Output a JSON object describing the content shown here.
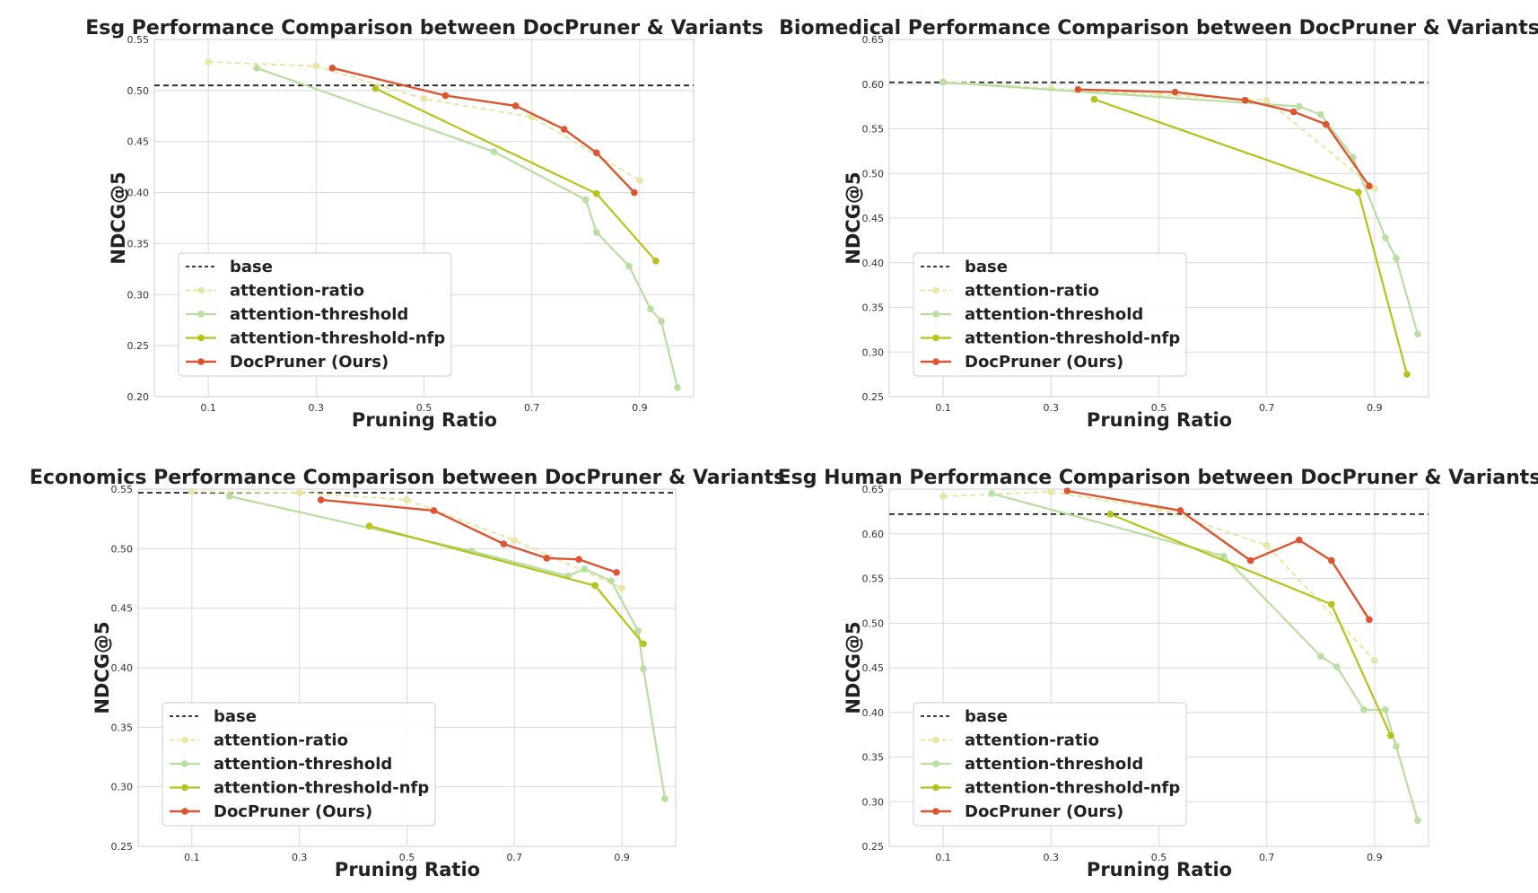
{
  "colors": {
    "base": "#222222",
    "attention_ratio": "#e7e6a6",
    "attention_threshold": "#b9dea2",
    "attention_threshold_nfp": "#b6c31a",
    "docpruner": "#dd5530",
    "grid": "#d9d9d9"
  },
  "chart_data": [
    {
      "type": "line",
      "title": "Esg Performance Comparison between DocPruner & Variants",
      "xlabel": "Pruning Ratio",
      "ylabel": "NDCG@5",
      "xlim": [
        0.0,
        1.0
      ],
      "ylim": [
        0.2,
        0.55
      ],
      "xticks": [
        "0.1",
        "0.3",
        "0.5",
        "0.7",
        "0.9"
      ],
      "yticks": [
        "0.20",
        "0.25",
        "0.30",
        "0.35",
        "0.40",
        "0.45",
        "0.50",
        "0.55"
      ],
      "base": 0.505,
      "legend": [
        "base",
        "attention-ratio",
        "attention-threshold",
        "attention-threshold-nfp",
        "DocPruner (Ours)"
      ],
      "series": [
        {
          "name": "attention-ratio",
          "x": [
            0.1,
            0.3,
            0.5,
            0.7,
            0.9
          ],
          "y": [
            0.528,
            0.524,
            0.492,
            0.474,
            0.412
          ]
        },
        {
          "name": "attention-threshold",
          "x": [
            0.19,
            0.63,
            0.8,
            0.82,
            0.88,
            0.92,
            0.94,
            0.97
          ],
          "y": [
            0.522,
            0.44,
            0.393,
            0.361,
            0.328,
            0.286,
            0.274,
            0.209
          ]
        },
        {
          "name": "attention-threshold-nfp",
          "x": [
            0.41,
            0.82,
            0.93
          ],
          "y": [
            0.502,
            0.399,
            0.333
          ]
        },
        {
          "name": "DocPruner (Ours)",
          "x": [
            0.33,
            0.54,
            0.67,
            0.76,
            0.82,
            0.89
          ],
          "y": [
            0.522,
            0.495,
            0.485,
            0.462,
            0.439,
            0.4
          ]
        }
      ]
    },
    {
      "type": "line",
      "title": "Biomedical Performance Comparison between DocPruner & Variants",
      "xlabel": "Pruning Ratio",
      "ylabel": "NDCG@5",
      "xlim": [
        0.0,
        1.0
      ],
      "ylim": [
        0.25,
        0.65
      ],
      "xticks": [
        "0.1",
        "0.3",
        "0.5",
        "0.7",
        "0.9"
      ],
      "yticks": [
        "0.25",
        "0.30",
        "0.35",
        "0.40",
        "0.45",
        "0.50",
        "0.55",
        "0.60",
        "0.65"
      ],
      "base": 0.602,
      "legend": [
        "base",
        "attention-ratio",
        "attention-threshold",
        "attention-threshold-nfp",
        "DocPruner (Ours)"
      ],
      "series": [
        {
          "name": "attention-ratio",
          "x": [
            0.1,
            0.3,
            0.5,
            0.7,
            0.9
          ],
          "y": [
            0.603,
            0.595,
            0.588,
            0.582,
            0.483
          ]
        },
        {
          "name": "attention-threshold",
          "x": [
            0.1,
            0.76,
            0.8,
            0.86,
            0.92,
            0.94,
            0.98
          ],
          "y": [
            0.602,
            0.575,
            0.566,
            0.518,
            0.428,
            0.405,
            0.32
          ]
        },
        {
          "name": "attention-threshold-nfp",
          "x": [
            0.38,
            0.87,
            0.96
          ],
          "y": [
            0.583,
            0.479,
            0.275
          ]
        },
        {
          "name": "DocPruner (Ours)",
          "x": [
            0.35,
            0.53,
            0.66,
            0.75,
            0.81,
            0.89
          ],
          "y": [
            0.594,
            0.591,
            0.582,
            0.569,
            0.555,
            0.486
          ]
        }
      ]
    },
    {
      "type": "line",
      "title": "Economics Performance Comparison between DocPruner & Variants",
      "xlabel": "Pruning Ratio",
      "ylabel": "NDCG@5",
      "xlim": [
        0.0,
        1.0
      ],
      "ylim": [
        0.25,
        0.55
      ],
      "xticks": [
        "0.1",
        "0.3",
        "0.5",
        "0.7",
        "0.9"
      ],
      "yticks": [
        "0.25",
        "0.30",
        "0.35",
        "0.40",
        "0.45",
        "0.50",
        "0.55"
      ],
      "base": 0.547,
      "legend": [
        "base",
        "attention-ratio",
        "attention-threshold",
        "attention-threshold-nfp",
        "DocPruner (Ours)"
      ],
      "series": [
        {
          "name": "attention-ratio",
          "x": [
            0.1,
            0.3,
            0.5,
            0.7,
            0.9
          ],
          "y": [
            0.548,
            0.547,
            0.541,
            0.507,
            0.467
          ]
        },
        {
          "name": "attention-threshold",
          "x": [
            0.17,
            0.62,
            0.8,
            0.83,
            0.88,
            0.93,
            0.94,
            0.98
          ],
          "y": [
            0.544,
            0.498,
            0.477,
            0.483,
            0.473,
            0.431,
            0.399,
            0.29
          ]
        },
        {
          "name": "attention-threshold-nfp",
          "x": [
            0.43,
            0.85,
            0.94
          ],
          "y": [
            0.519,
            0.469,
            0.42
          ]
        },
        {
          "name": "DocPruner (Ours)",
          "x": [
            0.34,
            0.55,
            0.68,
            0.76,
            0.82,
            0.89
          ],
          "y": [
            0.541,
            0.532,
            0.504,
            0.492,
            0.491,
            0.48
          ]
        }
      ]
    },
    {
      "type": "line",
      "title": "Esg Human Performance Comparison between DocPruner & Variants",
      "xlabel": "Pruning Ratio",
      "ylabel": "NDCG@5",
      "xlim": [
        0.0,
        1.0
      ],
      "ylim": [
        0.25,
        0.65
      ],
      "xticks": [
        "0.1",
        "0.3",
        "0.5",
        "0.7",
        "0.9"
      ],
      "yticks": [
        "0.25",
        "0.30",
        "0.35",
        "0.40",
        "0.45",
        "0.50",
        "0.55",
        "0.60",
        "0.65"
      ],
      "base": 0.622,
      "legend": [
        "base",
        "attention-ratio",
        "attention-threshold",
        "attention-threshold-nfp",
        "DocPruner (Ours)"
      ],
      "series": [
        {
          "name": "attention-ratio",
          "x": [
            0.1,
            0.3,
            0.5,
            0.7,
            0.9
          ],
          "y": [
            0.642,
            0.647,
            0.628,
            0.587,
            0.458
          ]
        },
        {
          "name": "attention-threshold",
          "x": [
            0.19,
            0.62,
            0.8,
            0.83,
            0.88,
            0.92,
            0.94,
            0.98
          ],
          "y": [
            0.645,
            0.575,
            0.463,
            0.451,
            0.403,
            0.403,
            0.362,
            0.279
          ]
        },
        {
          "name": "attention-threshold-nfp",
          "x": [
            0.41,
            0.82,
            0.93
          ],
          "y": [
            0.622,
            0.521,
            0.374
          ]
        },
        {
          "name": "DocPruner (Ours)",
          "x": [
            0.33,
            0.54,
            0.67,
            0.76,
            0.82,
            0.89
          ],
          "y": [
            0.648,
            0.626,
            0.57,
            0.593,
            0.57,
            0.504
          ]
        }
      ]
    }
  ]
}
